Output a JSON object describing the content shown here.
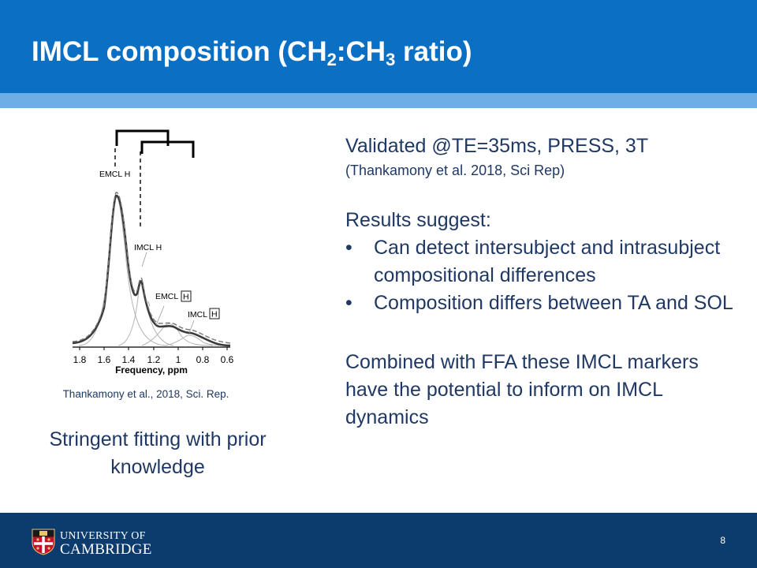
{
  "slide": {
    "title_main": "IMCL composition (CH",
    "title_sub1": "2",
    "title_mid": ":CH",
    "title_sub2": "3",
    "title_end": " ratio)",
    "page_number": "8"
  },
  "figure": {
    "labels": {
      "emcl_h_top": "EMCL  H",
      "imcl_h_mid": "IMCL  H",
      "emcl_h_boxed_text": "EMCL",
      "emcl_h_boxed_box": "H",
      "imcl_h_boxed_text": "IMCL",
      "imcl_h_boxed_box": "H"
    },
    "x_ticks": [
      "1.8",
      "1.6",
      "1.4",
      "1.2",
      "1",
      "0.8",
      "0.6"
    ],
    "xlabel": "Frequency, ppm",
    "citation": "Thankamony  et al.,  2018,  Sci. Rep."
  },
  "caption": "Stringent fitting with prior knowledge",
  "right": {
    "validated": "Validated @TE=35ms, PRESS, 3T",
    "reference": "(Thankamony et al. 2018, Sci Rep)",
    "results_heading": "Results suggest:",
    "bullet_char": "•",
    "bullets": [
      "Can detect intersubject and intrasubject compositional differences",
      "Composition differs between TA and SOL"
    ],
    "conclusion": "Combined with FFA these IMCL markers have the potential to inform on IMCL dynamics"
  },
  "footer": {
    "university_line1": "UNIVERSITY OF",
    "university_line2": "CAMBRIDGE"
  },
  "colors": {
    "header_blue": "#0b6fc4",
    "header_stripe": "#6daee6",
    "text_navy": "#1f3864",
    "footer_navy": "#0c3b6e"
  }
}
